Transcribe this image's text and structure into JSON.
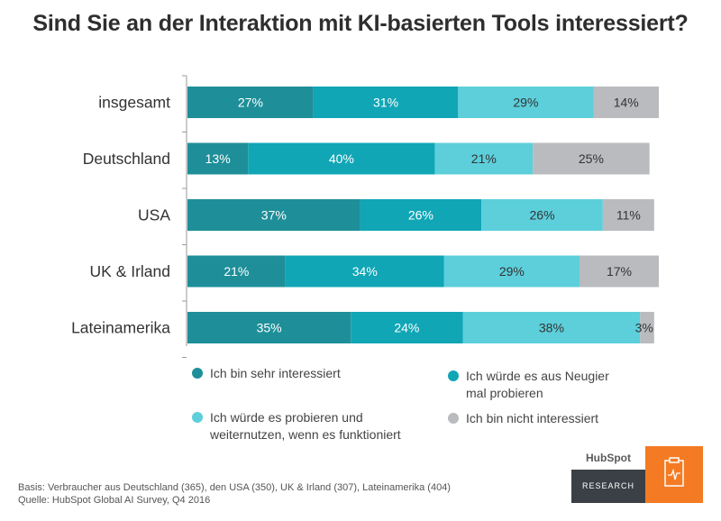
{
  "title": "Sind Sie an der Interaktion mit KI-basierten Tools interessiert?",
  "chart_data": {
    "type": "bar",
    "orientation": "horizontal-stacked",
    "title": "Sind Sie an der Interaktion mit KI-basierten Tools interessiert?",
    "categories": [
      "insgesamt",
      "Deutschland",
      "USA",
      "UK & Irland",
      "Lateinamerika"
    ],
    "series": [
      {
        "name": "Ich bin sehr interessiert",
        "color": "#1e8f99",
        "values": [
          27,
          13,
          37,
          21,
          35
        ]
      },
      {
        "name": "Ich würde es aus Neugier mal probieren",
        "color": "#10a6b6",
        "values": [
          31,
          40,
          26,
          34,
          24
        ]
      },
      {
        "name": "Ich würde es probieren und weiternutzen, wenn es funktioniert",
        "color": "#5ccfdb",
        "values": [
          29,
          21,
          26,
          29,
          38
        ]
      },
      {
        "name": "Ich bin nicht interessiert",
        "color": "#b9bbbe",
        "values": [
          14,
          25,
          11,
          17,
          3
        ]
      }
    ],
    "value_suffix": "%",
    "xlim": [
      0,
      101
    ],
    "legend_position": "bottom"
  },
  "legend": {
    "item1": "Ich bin sehr interessiert",
    "item2_line1": "Ich würde es aus Neugier",
    "item2_line2": "mal probieren",
    "item3_line1": "Ich würde es probieren und",
    "item3_line2": "weiternutzen, wenn es funktioniert",
    "item4": "Ich bin nicht interessiert"
  },
  "footnote": {
    "basis": "Basis: Verbraucher aus Deutschland (365), den USA (350), UK & Irland (307), Lateinamerika (404)",
    "source": "Quelle: HubSpot Global AI Survey, Q4 2016"
  },
  "branding": {
    "logo": "HubSpot",
    "research": "RESEARCH"
  }
}
